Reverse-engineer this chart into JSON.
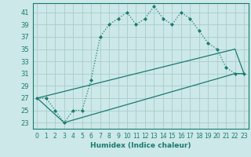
{
  "xlabel": "Humidex (Indice chaleur)",
  "bg_color": "#cce8e8",
  "grid_color": "#aacccc",
  "line_color": "#1a7a6e",
  "xlim": [
    -0.5,
    23.5
  ],
  "ylim": [
    22,
    42.5
  ],
  "xticks": [
    0,
    1,
    2,
    3,
    4,
    5,
    6,
    7,
    8,
    9,
    10,
    11,
    12,
    13,
    14,
    15,
    16,
    17,
    18,
    19,
    20,
    21,
    22,
    23
  ],
  "yticks": [
    23,
    25,
    27,
    29,
    31,
    33,
    35,
    37,
    39,
    41
  ],
  "line1_x": [
    0,
    1,
    2,
    3,
    4,
    5,
    6,
    7,
    8,
    9,
    10,
    11,
    12,
    13,
    14,
    15,
    16,
    17,
    18,
    19,
    20,
    21,
    22,
    23
  ],
  "line1_y": [
    27,
    27,
    25,
    23,
    25,
    25,
    30,
    37,
    39,
    40,
    41,
    39,
    40,
    42,
    40,
    39,
    41,
    40,
    38,
    36,
    35,
    32,
    31,
    31
  ],
  "line2_x": [
    0,
    22,
    23
  ],
  "line2_y": [
    27,
    35,
    31
  ],
  "line3_x": [
    0,
    3,
    22,
    23
  ],
  "line3_y": [
    27,
    23,
    31,
    31
  ]
}
